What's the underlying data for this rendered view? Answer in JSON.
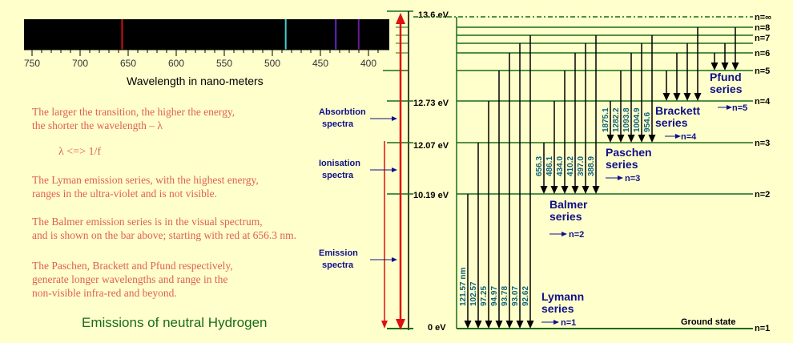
{
  "spectrum": {
    "caption": "Wavelength in nano-meters",
    "ticks": [
      "750",
      "700",
      "650",
      "600",
      "550",
      "500",
      "450",
      "400"
    ],
    "lines": [
      {
        "nm": 656.3,
        "color": "#cc1111"
      },
      {
        "nm": 486.1,
        "color": "#44cccc"
      },
      {
        "nm": 434.0,
        "color": "#6622cc"
      },
      {
        "nm": 410.2,
        "color": "#6a1a9a"
      }
    ]
  },
  "notes": [
    {
      "l1": "The larger the transition, the higher the energy,",
      "l2": "the shorter the wavelength – λ"
    },
    {
      "l1": "λ <=> 1/f",
      "l2": ""
    },
    {
      "l1": "The Lyman emission series, with the highest energy,",
      "l2": "ranges in the ultra-violet and is not visible."
    },
    {
      "l1": "The Balmer emission series is in the visual spectrum,",
      "l2": "and is shown on the bar above; starting with red at 656.3 nm."
    },
    {
      "l1": "The Paschen, Brackett and Pfund respectively,",
      "l2": "generate longer wavelengths and range in the",
      "l3": "non-visible infra-red and beyond."
    }
  ],
  "caption": "Emissions of neutral Hydrogen",
  "energy_axis": {
    "labels": [
      "13.6 eV",
      "12.73 eV",
      "12.07 eV",
      "10.19 eV",
      "0 eV"
    ],
    "spectra": [
      {
        "l1": "Absorbtion",
        "l2": "spectra"
      },
      {
        "l1": "Ionisation",
        "l2": "spectra"
      },
      {
        "l1": "Emission",
        "l2": "spectra"
      }
    ]
  },
  "levels": [
    "n=∞",
    "n=8",
    "n=7",
    "n=6",
    "n=5",
    "n=4",
    "n=3",
    "n=2",
    "n=1"
  ],
  "ground_state": "Ground state",
  "series": {
    "lyman": {
      "name1": "Lymann",
      "name2": "series",
      "sub": "n=1",
      "wavelengths": [
        "121.57 nm",
        "102.57",
        "97.25",
        "94.97",
        "93.78",
        "93.07",
        "92.62"
      ]
    },
    "balmer": {
      "name1": "Balmer",
      "name2": "series",
      "sub": "n=2",
      "wavelengths": [
        "656.3",
        "486.1",
        "434.0",
        "410.2",
        "397.0",
        "388.9"
      ]
    },
    "paschen": {
      "name1": "Paschen",
      "name2": "series",
      "sub": "n=3",
      "wavelengths": [
        "1875.1",
        "1282.2",
        "1093.8",
        "1004.9",
        "954.6"
      ]
    },
    "brackett": {
      "name1": "Brackett",
      "name2": "series",
      "sub": "n=4"
    },
    "pfund": {
      "name1": "Pfund",
      "name2": "series",
      "sub": "n=5"
    }
  }
}
